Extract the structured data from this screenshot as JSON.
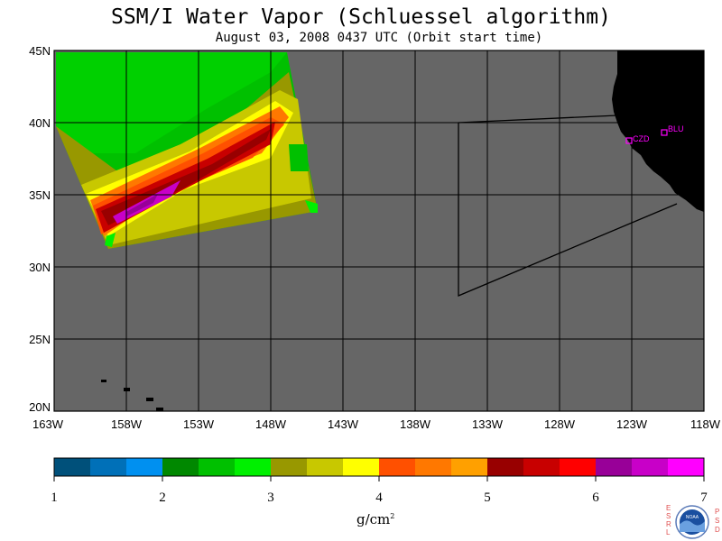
{
  "title": "SSM/I Water Vapor (Schluessel algorithm)",
  "subtitle": "August 03, 2008  0437 UTC  (Orbit start time)",
  "map": {
    "lat_labels": [
      "45N",
      "40N",
      "35N",
      "30N",
      "25N",
      "20N"
    ],
    "lon_labels": [
      "163W",
      "158W",
      "153W",
      "148W",
      "143W",
      "138W",
      "133W",
      "128W",
      "123W",
      "118W"
    ],
    "lat_values": [
      45,
      40,
      35,
      30,
      25,
      20
    ],
    "lon_values": [
      -163,
      -158,
      -153,
      -148,
      -143,
      -138,
      -133,
      -128,
      -123,
      -118
    ],
    "ocean_color": "#666666",
    "land_color": "#000000",
    "stations": [
      {
        "name": "CZD",
        "lat": 38.6,
        "lon": -123.2
      },
      {
        "name": "BLU",
        "lat": 39.3,
        "lon": -120.8
      }
    ]
  },
  "colorbar": {
    "tick_labels": [
      "1",
      "2",
      "3",
      "4",
      "5",
      "6",
      "7"
    ],
    "unit_text": "g/cm",
    "unit_exp": "2",
    "colors": [
      "#00507a",
      "#0070b8",
      "#0090f0",
      "#008800",
      "#00c000",
      "#00f000",
      "#989800",
      "#c8c800",
      "#ffff00",
      "#ff5000",
      "#ff7800",
      "#ffa000",
      "#980000",
      "#c80000",
      "#ff0000",
      "#980098",
      "#c800c8",
      "#ff00ff"
    ]
  },
  "logo": {
    "left_letters": [
      "E",
      "S",
      "R",
      "L"
    ],
    "right_letters": [
      "P",
      "S",
      "D"
    ],
    "center_text": "NOAA"
  }
}
